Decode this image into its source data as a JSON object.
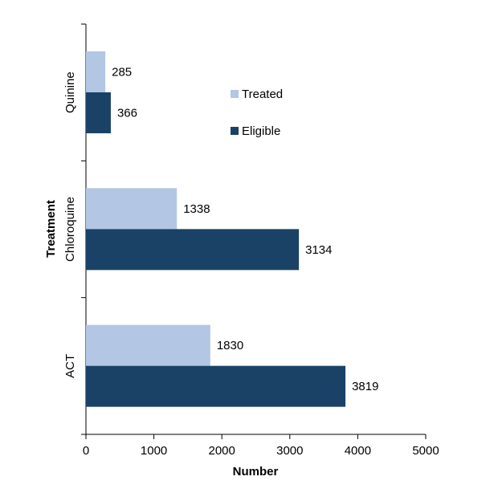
{
  "chart_data": {
    "type": "bar",
    "orientation": "horizontal",
    "categories": [
      "Quinine",
      "Chloroquine",
      "ACT"
    ],
    "series": [
      {
        "name": "Treated",
        "color": "#b3c6e3",
        "values": [
          285,
          1338,
          1830
        ]
      },
      {
        "name": "Eligible",
        "color": "#1a4266",
        "values": [
          366,
          3134,
          3819
        ]
      }
    ],
    "xlabel": "Number",
    "ylabel": "Treatment",
    "xlim": [
      0,
      5000
    ],
    "xticks": [
      "0",
      "1000",
      "2000",
      "3000",
      "4000",
      "5000"
    ],
    "legend": "upper-middle",
    "grid": false
  }
}
